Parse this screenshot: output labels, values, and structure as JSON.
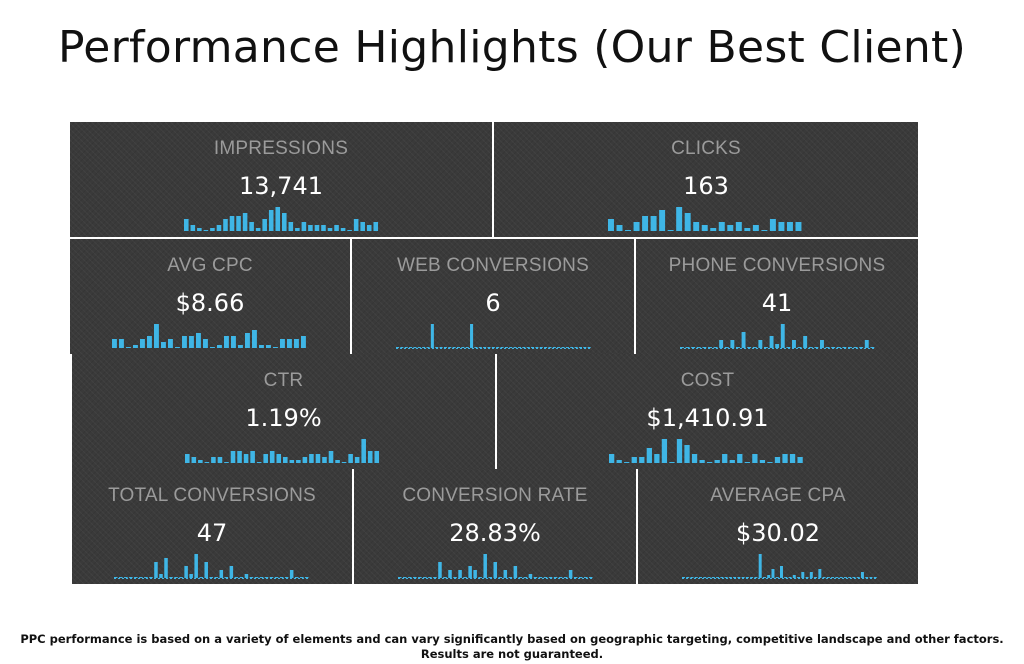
{
  "title": "Performance Highlights (Our Best Client)",
  "colors": {
    "tile_bg": "#3a3a3a",
    "label": "#9b9b9b",
    "value": "#ffffff",
    "bar": "#3fb6e6"
  },
  "chart_data": [
    {
      "type": "bar",
      "label": "IMPRESSIONS",
      "value": "13,741",
      "values": [
        4,
        2,
        1,
        0,
        1,
        2,
        4,
        5,
        5,
        6,
        3,
        1,
        4,
        7,
        8,
        6,
        3,
        1,
        3,
        2,
        2,
        2,
        1,
        2,
        1,
        0,
        4,
        3,
        2,
        3
      ]
    },
    {
      "type": "bar",
      "label": "CLICKS",
      "value": "163",
      "values": [
        4,
        2,
        0,
        3,
        5,
        5,
        7,
        0,
        8,
        6,
        3,
        2,
        1,
        3,
        2,
        3,
        1,
        2,
        0,
        4,
        3,
        3,
        3
      ]
    },
    {
      "type": "bar",
      "label": "AVG CPC",
      "value": "$8.66",
      "values": [
        3,
        3,
        0,
        1,
        3,
        4,
        8,
        2,
        3,
        0,
        4,
        4,
        5,
        3,
        0,
        1,
        4,
        4,
        1,
        5,
        6,
        1,
        1,
        0,
        3,
        3,
        3,
        4
      ]
    },
    {
      "type": "bar",
      "label": "WEB CONVERSIONS",
      "value": "6",
      "values": [
        0,
        0,
        0,
        0,
        0,
        0,
        0,
        0,
        10,
        0,
        0,
        0,
        0,
        0,
        0,
        0,
        0,
        10,
        0,
        0,
        0,
        0,
        0,
        0,
        0,
        0,
        0,
        0,
        0,
        0,
        0,
        0,
        0,
        0,
        0,
        0,
        0,
        0,
        0,
        0,
        0,
        0,
        0,
        0,
        0
      ]
    },
    {
      "type": "bar",
      "label": "PHONE CONVERSIONS",
      "value": "41",
      "values": [
        0,
        0,
        0,
        0,
        0,
        0,
        0,
        2,
        0,
        2,
        0,
        4,
        0,
        0,
        2,
        0,
        3,
        1,
        6,
        0,
        2,
        0,
        3,
        0,
        0,
        2,
        0,
        0,
        0,
        0,
        0,
        0,
        0,
        2,
        0
      ]
    },
    {
      "type": "bar",
      "label": "CTR",
      "value": "1.19%",
      "values": [
        3,
        2,
        1,
        0,
        2,
        2,
        0,
        4,
        4,
        3,
        4,
        0,
        3,
        4,
        3,
        2,
        1,
        1,
        2,
        3,
        3,
        2,
        4,
        1,
        0,
        3,
        2,
        8,
        4,
        4
      ]
    },
    {
      "type": "bar",
      "label": "COST",
      "value": "$1,410.91",
      "values": [
        3,
        1,
        0,
        2,
        2,
        5,
        3,
        8,
        0,
        8,
        6,
        3,
        1,
        0,
        1,
        3,
        1,
        3,
        0,
        3,
        1,
        0,
        2,
        3,
        3,
        2
      ]
    },
    {
      "type": "bar",
      "label": "TOTAL CONVERSIONS",
      "value": "47",
      "values": [
        0,
        0,
        0,
        0,
        0,
        0,
        0,
        0,
        4,
        1,
        5,
        0,
        0,
        0,
        3,
        1,
        6,
        0,
        4,
        0,
        0,
        2,
        0,
        3,
        0,
        0,
        1,
        0,
        0,
        0,
        0,
        0,
        0,
        0,
        0,
        2,
        0,
        0,
        0
      ]
    },
    {
      "type": "bar",
      "label": "CONVERSION RATE",
      "value": "28.83%",
      "values": [
        0,
        0,
        0,
        0,
        0,
        0,
        0,
        0,
        4,
        0,
        2,
        0,
        2,
        0,
        3,
        2,
        0,
        6,
        0,
        4,
        0,
        2,
        0,
        3,
        0,
        0,
        1,
        0,
        0,
        0,
        0,
        0,
        0,
        0,
        2,
        0,
        0,
        0,
        0
      ]
    },
    {
      "type": "bar",
      "label": "AVERAGE CPA",
      "value": "$30.02",
      "values": [
        0,
        0,
        0,
        0,
        0,
        0,
        0,
        0,
        0,
        0,
        0,
        0,
        0,
        0,
        0,
        0,
        0,
        0,
        8,
        0,
        1,
        3,
        0,
        4,
        0,
        0,
        1,
        0,
        2,
        0,
        2,
        0,
        3,
        0,
        0,
        0,
        0,
        0,
        0,
        0,
        0,
        0,
        2,
        0,
        0,
        0
      ]
    }
  ],
  "footnote": {
    "line1": "PPC performance is based on a variety of elements and can vary significantly based on geographic targeting, competitive landscape and other factors.",
    "line2": "Results are not guaranteed."
  }
}
